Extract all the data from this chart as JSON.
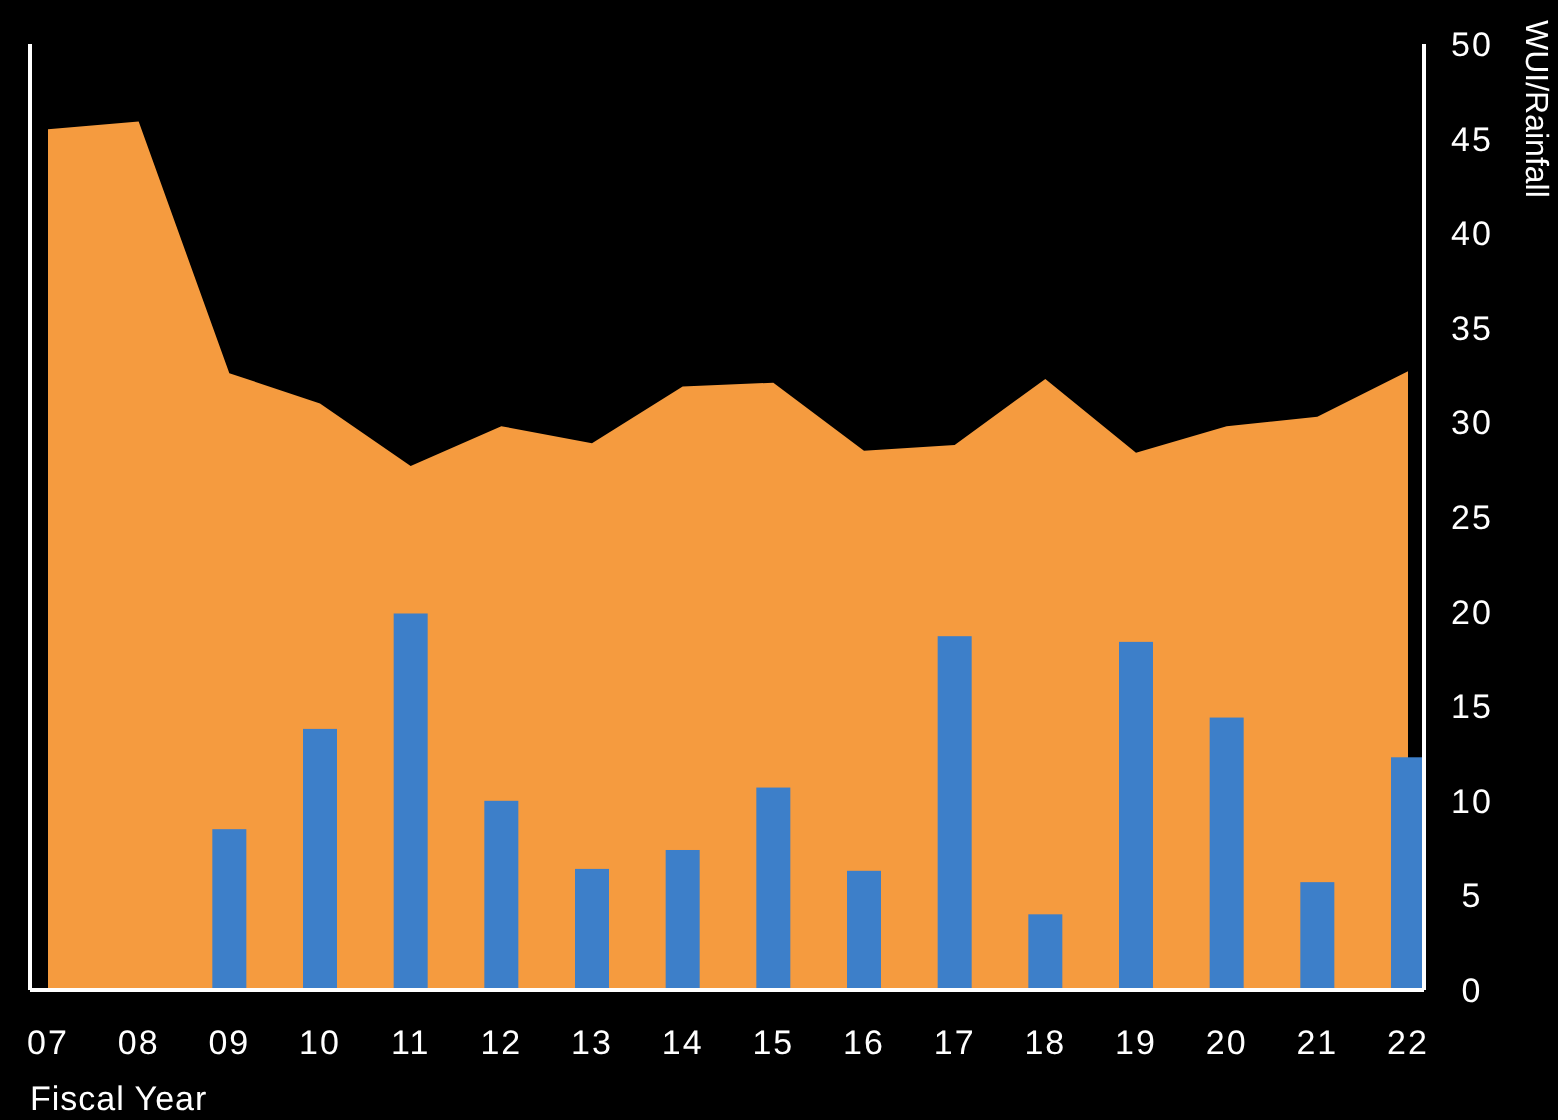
{
  "chart_data": {
    "type": "bar",
    "xlabel": "Fiscal Year",
    "ylabel": "WUI/Rainfall",
    "categories": [
      "07",
      "08",
      "09",
      "10",
      "11",
      "12",
      "13",
      "14",
      "15",
      "16",
      "17",
      "18",
      "19",
      "20",
      "21",
      "22"
    ],
    "series": [
      {
        "type": "area",
        "color": "#f59b3f",
        "values": [
          45.5,
          45.9,
          32.6,
          31.0,
          27.7,
          29.8,
          28.9,
          31.9,
          32.1,
          28.5,
          28.8,
          32.3,
          28.4,
          29.8,
          30.3,
          32.7
        ]
      },
      {
        "color": "#3d7fc9",
        "values": [
          null,
          null,
          8.5,
          13.8,
          19.9,
          10.0,
          6.4,
          7.4,
          10.7,
          6.3,
          18.7,
          4.0,
          18.4,
          14.4,
          5.7,
          12.3
        ]
      }
    ],
    "ylim": [
      0,
      50
    ],
    "yticks": [
      0,
      5,
      10,
      15,
      20,
      25,
      30,
      35,
      40,
      45,
      50
    ],
    "grid": false
  }
}
